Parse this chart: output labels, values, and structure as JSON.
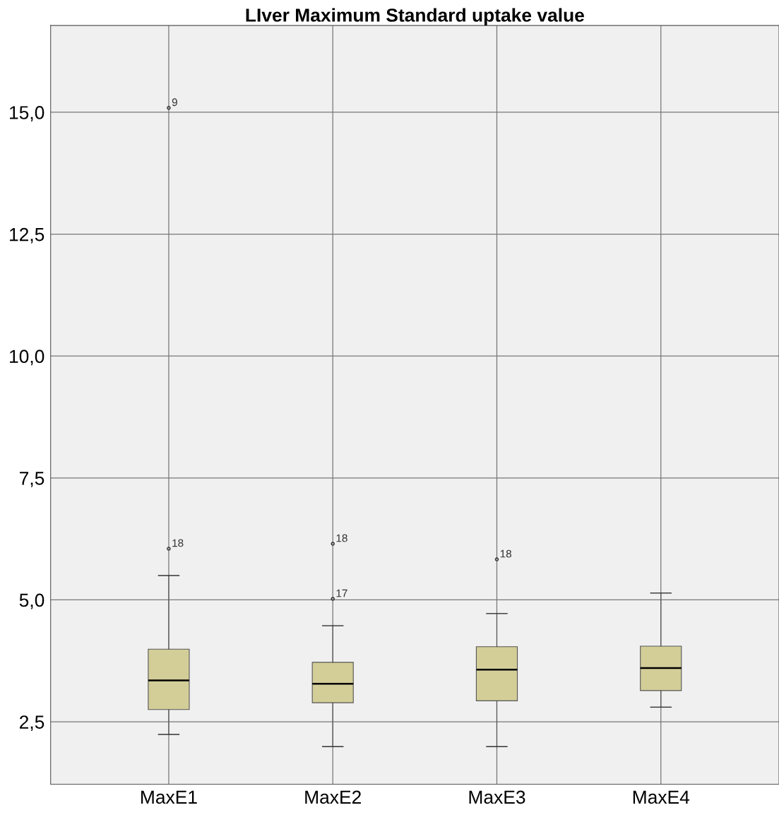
{
  "chart_data": {
    "type": "box",
    "title": "LIver Maximum Standard uptake value",
    "categories": [
      "MaxE1",
      "MaxE2",
      "MaxE3",
      "MaxE4"
    ],
    "boxes": [
      {
        "low": 2.24,
        "q1": 2.75,
        "median": 3.35,
        "q3": 3.99,
        "high": 5.5,
        "outliers": [
          15.09,
          6.05
        ]
      },
      {
        "low": 1.99,
        "q1": 2.89,
        "median": 3.28,
        "q3": 3.72,
        "high": 4.47,
        "outliers": [
          6.15,
          5.02
        ]
      },
      {
        "low": 1.99,
        "q1": 2.93,
        "median": 3.57,
        "q3": 4.04,
        "high": 4.72,
        "outliers": [
          5.83
        ]
      },
      {
        "low": 2.8,
        "q1": 3.14,
        "median": 3.6,
        "q3": 4.05,
        "high": 5.14
      }
    ],
    "color": "#d3ce98",
    "ylim": [
      1.22,
      16.78
    ],
    "yticks": [
      {
        "value": 2.5,
        "label": "2,5"
      },
      {
        "value": 5,
        "label": "5,0"
      },
      {
        "value": 7.5,
        "label": "7,5"
      },
      {
        "value": 10,
        "label": "10,0"
      },
      {
        "value": 12.5,
        "label": "12,5"
      },
      {
        "value": 15,
        "label": "15,0"
      }
    ],
    "grid": true,
    "annotations": [
      "9",
      "18",
      "18",
      "17",
      "18"
    ]
  }
}
